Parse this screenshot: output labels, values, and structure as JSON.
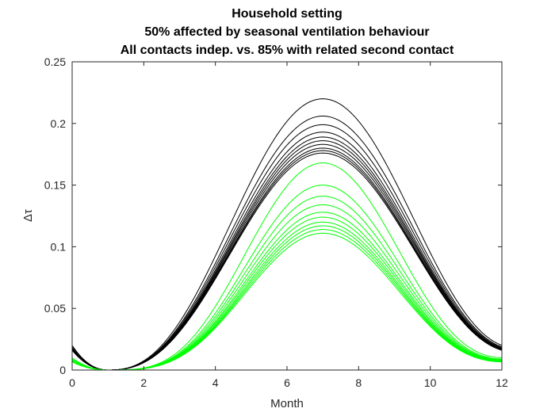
{
  "chart_data": {
    "type": "line",
    "title": [
      "Household setting",
      "50% affected by seasonal ventilation behaviour",
      "All contacts indep. vs. 85% with related second contact"
    ],
    "xlabel": "Month",
    "ylabel": "Δτ",
    "xlim": [
      0,
      12
    ],
    "ylim": [
      0,
      0.25
    ],
    "xticks": [
      0,
      2,
      4,
      6,
      8,
      10,
      12
    ],
    "yticks": [
      0,
      0.05,
      0.1,
      0.15,
      0.2,
      0.25
    ],
    "xtick_labels": [
      "0",
      "2",
      "4",
      "6",
      "8",
      "10",
      "12"
    ],
    "ytick_labels": [
      "0",
      "0.05",
      "0.1",
      "0.15",
      "0.2",
      "0.25"
    ],
    "grid": false,
    "legend": "none",
    "curve_model": "y = peak * ((1 - cos(2*pi*(month - 1)/12)) / 2)^p",
    "series_groups": [
      {
        "color": "#000000",
        "peaks": [
          0.22,
          0.206,
          0.199,
          0.193,
          0.189,
          0.186,
          0.183,
          0.18,
          0.178,
          0.176
        ],
        "p": 1.25,
        "value_at_0": 0.02,
        "value_at_12": 0.02
      },
      {
        "color": "#00ff00",
        "peaks": [
          0.168,
          0.15,
          0.141,
          0.134,
          0.128,
          0.124,
          0.12,
          0.117,
          0.114,
          0.111
        ],
        "p": 1.7,
        "value_at_0": 0.01,
        "value_at_12": 0.01
      }
    ]
  }
}
